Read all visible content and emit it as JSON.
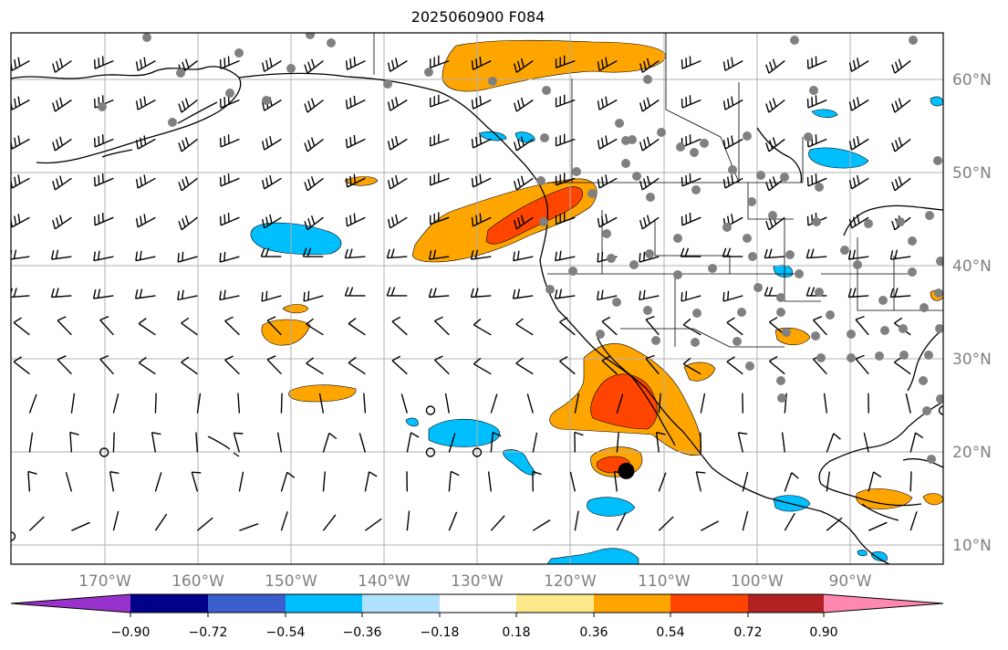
{
  "title": "2025060900 F084",
  "map": {
    "lon_range": [
      -180,
      -80
    ],
    "lat_range": [
      8,
      65
    ],
    "lon_ticks": [
      {
        "value": -170,
        "label": "170°W"
      },
      {
        "value": -160,
        "label": "160°W"
      },
      {
        "value": -150,
        "label": "150°W"
      },
      {
        "value": -140,
        "label": "140°W"
      },
      {
        "value": -130,
        "label": "130°W"
      },
      {
        "value": -120,
        "label": "120°W"
      },
      {
        "value": -110,
        "label": "110°W"
      },
      {
        "value": -100,
        "label": "100°W"
      },
      {
        "value": -90,
        "label": "90°W"
      }
    ],
    "lat_ticks": [
      {
        "value": 60,
        "label": "60°N"
      },
      {
        "value": 50,
        "label": "50°N"
      },
      {
        "value": 40,
        "label": "40°N"
      },
      {
        "value": 30,
        "label": "30°N"
      },
      {
        "value": 20,
        "label": "20°N"
      },
      {
        "value": 10,
        "label": "10°N"
      }
    ],
    "grid": true,
    "colors": {
      "tick_label": "#808080",
      "gridline": "#b0b0b0",
      "coast": "#000000",
      "station": "#808080"
    }
  },
  "colorbar": {
    "orientation": "horizontal",
    "extend": "both",
    "bins": [
      {
        "color": "#9932cc"
      },
      {
        "color": "#00008b"
      },
      {
        "color": "#3a5fcd"
      },
      {
        "color": "#00bfff"
      },
      {
        "color": "#b0e2ff"
      },
      {
        "color": "#ffffff"
      },
      {
        "color": "#fde98a"
      },
      {
        "color": "#ffa500"
      },
      {
        "color": "#ff4500"
      },
      {
        "color": "#b22222"
      },
      {
        "color": "#ff88b0"
      }
    ],
    "tick_labels": [
      "−0.90",
      "−0.72",
      "−0.54",
      "−0.36",
      "−0.18",
      "0.18",
      "0.36",
      "0.54",
      "0.72",
      "0.90"
    ]
  },
  "stations_open": [
    [
      -170,
      20
    ],
    [
      -135,
      20
    ],
    [
      -130,
      20
    ],
    [
      -135,
      24.5
    ],
    [
      -180,
      11
    ],
    [
      -80,
      24.5
    ]
  ],
  "station_filled_large": [
    -114,
    18
  ]
}
